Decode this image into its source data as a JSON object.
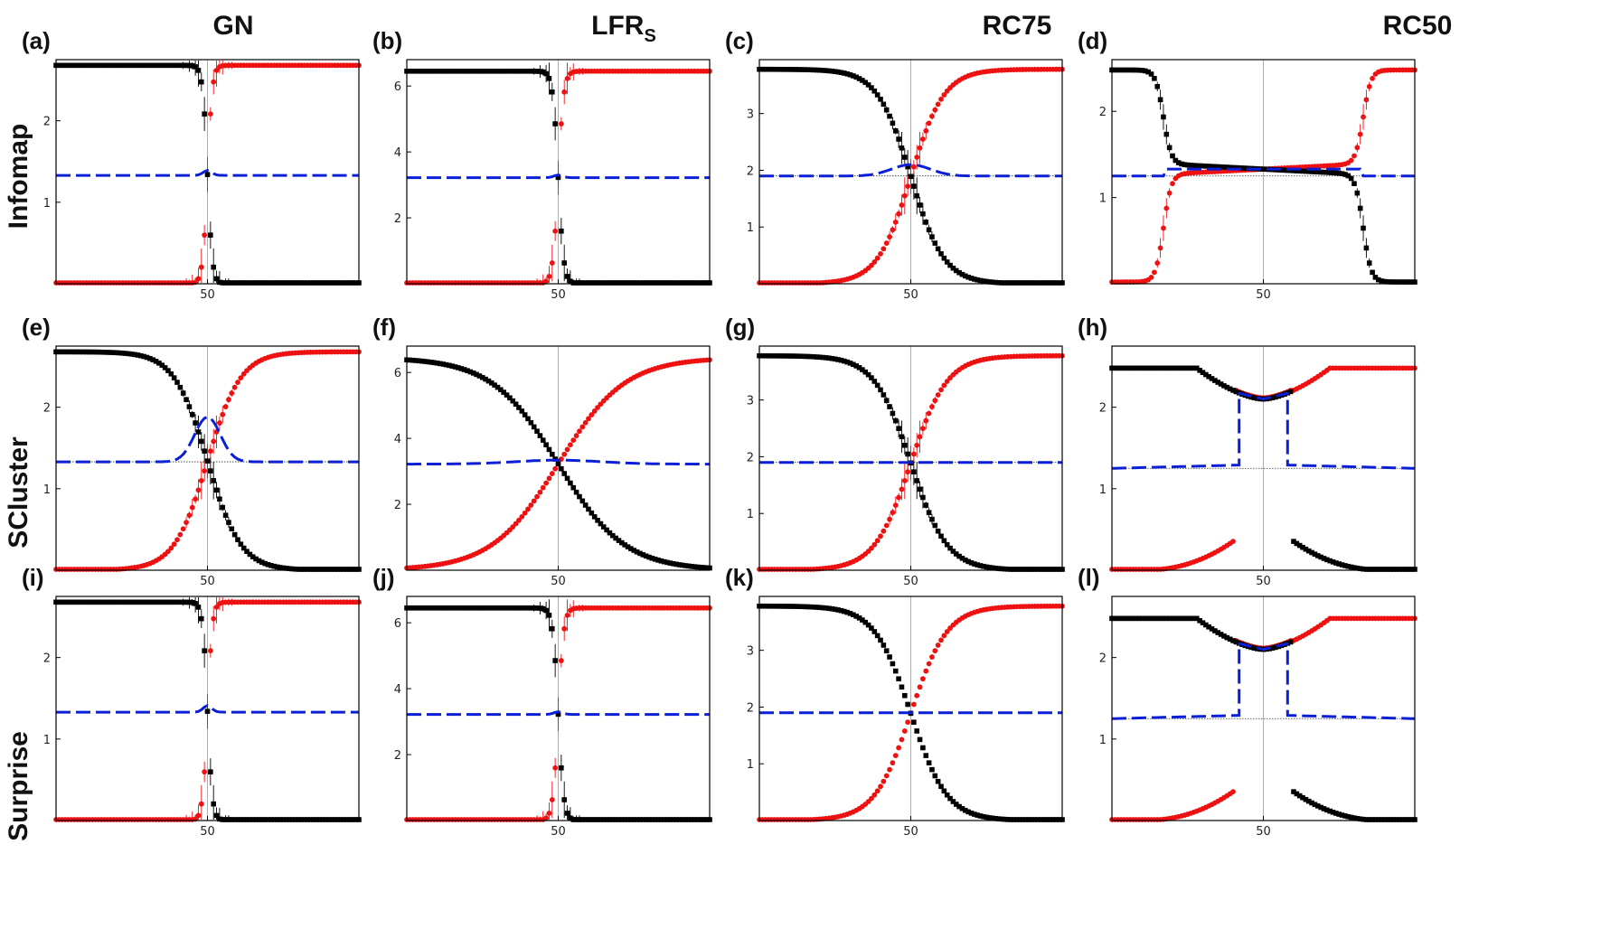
{
  "figure": {
    "columns": [
      "GN",
      "LFR",
      "RC75",
      "RC50"
    ],
    "lfr_subscript": "S",
    "rows": [
      "Infomap",
      "SCluster",
      "Surprise"
    ]
  },
  "colors": {
    "black_series": "#000000",
    "red_series": "#ee1111",
    "blue_series": "#0a1fd6",
    "midline": "#9a9a9a",
    "frame": "#000000"
  },
  "chart_data": [
    {
      "label": "(a)",
      "type": "scatter",
      "column": "GN",
      "row": "Infomap",
      "xlim": [
        0,
        100
      ],
      "ylim": [
        0,
        2.75
      ],
      "yticks": [
        1,
        2
      ],
      "xticks": [
        50
      ],
      "pattern": "step",
      "plateau": 2.68,
      "width": 0.8,
      "baseline": 1.33,
      "bump": 0.06,
      "bump_width": 2,
      "show_midline": true,
      "show_baseline": false,
      "errorbars": true
    },
    {
      "label": "(b)",
      "type": "scatter",
      "column": "LFR",
      "row": "Infomap",
      "xlim": [
        0,
        100
      ],
      "ylim": [
        0,
        6.8
      ],
      "yticks": [
        2,
        4,
        6
      ],
      "xticks": [
        50
      ],
      "pattern": "step",
      "plateau": 6.45,
      "width": 0.9,
      "baseline": 3.22,
      "bump": 0.08,
      "bump_width": 2,
      "show_midline": true,
      "show_baseline": false,
      "errorbars": true
    },
    {
      "label": "(c)",
      "type": "scatter",
      "column": "RC75",
      "row": "Infomap",
      "xlim": [
        0,
        100
      ],
      "ylim": [
        0,
        3.95
      ],
      "yticks": [
        1,
        2,
        3
      ],
      "xticks": [
        50
      ],
      "pattern": "sigmoid",
      "plateau": 3.78,
      "width": 5.5,
      "baseline": 1.9,
      "bump": 0.2,
      "bump_width": 9,
      "show_midline": true,
      "show_baseline": true,
      "errorbars": true
    },
    {
      "label": "(d)",
      "type": "scatter",
      "column": "RC50",
      "row": "Infomap",
      "xlim": [
        0,
        100
      ],
      "ylim": [
        0,
        2.6
      ],
      "yticks": [
        1,
        2
      ],
      "xticks": [
        50
      ],
      "pattern": "twostep",
      "plateau": 2.48,
      "mid_level": 1.33,
      "drop_at": [
        17,
        83
      ],
      "baseline": 1.25,
      "show_midline": true,
      "show_baseline": true,
      "errorbars": true
    },
    {
      "label": "(e)",
      "type": "scatter",
      "column": "GN",
      "row": "SCluster",
      "xlim": [
        0,
        100
      ],
      "ylim": [
        0,
        2.75
      ],
      "yticks": [
        1,
        2
      ],
      "xticks": [
        50
      ],
      "pattern": "sigmoid",
      "plateau": 2.68,
      "width": 5.5,
      "baseline": 1.33,
      "bump": 0.55,
      "bump_width": 6,
      "show_midline": true,
      "show_baseline": true,
      "errorbars": true
    },
    {
      "label": "(f)",
      "type": "scatter",
      "column": "LFR",
      "row": "SCluster",
      "xlim": [
        0,
        100
      ],
      "ylim": [
        0,
        6.8
      ],
      "yticks": [
        2,
        4,
        6
      ],
      "xticks": [
        50
      ],
      "pattern": "sigmoid",
      "plateau": 6.45,
      "width": 11,
      "baseline": 3.22,
      "bump": 0.12,
      "bump_width": 20,
      "show_midline": true,
      "show_baseline": false,
      "errorbars": false
    },
    {
      "label": "(g)",
      "type": "scatter",
      "column": "RC75",
      "row": "SCluster",
      "xlim": [
        0,
        100
      ],
      "ylim": [
        0,
        3.95
      ],
      "yticks": [
        1,
        2,
        3
      ],
      "xticks": [
        50
      ],
      "pattern": "sigmoid",
      "plateau": 3.78,
      "width": 6,
      "baseline": 1.9,
      "bump": 0.0,
      "bump_width": 6,
      "show_midline": true,
      "show_baseline": true,
      "errorbars": true
    },
    {
      "label": "(h)",
      "type": "scatter",
      "column": "RC50",
      "row": "SCluster",
      "xlim": [
        0,
        100
      ],
      "ylim": [
        0,
        2.75
      ],
      "yticks": [
        1,
        2
      ],
      "xticks": [
        50
      ],
      "pattern": "gap",
      "plateau": 2.48,
      "min_level": 2.1,
      "gap": [
        41,
        59
      ],
      "baseline": 1.25,
      "box_level": 2.18,
      "show_midline": true,
      "show_baseline": true,
      "errorbars": false
    },
    {
      "label": "(i)",
      "type": "scatter",
      "column": "GN",
      "row": "Surprise",
      "xlim": [
        0,
        100
      ],
      "ylim": [
        0,
        2.75
      ],
      "yticks": [
        1,
        2
      ],
      "xticks": [
        50
      ],
      "pattern": "step",
      "plateau": 2.68,
      "width": 0.8,
      "baseline": 1.33,
      "bump": 0.08,
      "bump_width": 2,
      "show_midline": true,
      "show_baseline": false,
      "errorbars": true
    },
    {
      "label": "(j)",
      "type": "scatter",
      "column": "LFR",
      "row": "Surprise",
      "xlim": [
        0,
        100
      ],
      "ylim": [
        0,
        6.8
      ],
      "yticks": [
        2,
        4,
        6
      ],
      "xticks": [
        50
      ],
      "pattern": "step",
      "plateau": 6.45,
      "width": 0.9,
      "baseline": 3.22,
      "bump": 0.08,
      "bump_width": 2,
      "show_midline": true,
      "show_baseline": false,
      "errorbars": true
    },
    {
      "label": "(k)",
      "type": "scatter",
      "column": "RC75",
      "row": "Surprise",
      "xlim": [
        0,
        100
      ],
      "ylim": [
        0,
        3.95
      ],
      "yticks": [
        1,
        2,
        3
      ],
      "xticks": [
        50
      ],
      "pattern": "sigmoid",
      "plateau": 3.78,
      "width": 6,
      "baseline": 1.9,
      "bump": 0.0,
      "bump_width": 6,
      "show_midline": true,
      "show_baseline": false,
      "errorbars": false
    },
    {
      "label": "(l)",
      "type": "scatter",
      "column": "RC50",
      "row": "Surprise",
      "xlim": [
        0,
        100
      ],
      "ylim": [
        0,
        2.75
      ],
      "yticks": [
        1,
        2
      ],
      "xticks": [
        50
      ],
      "pattern": "gap",
      "plateau": 2.48,
      "min_level": 2.1,
      "gap": [
        41,
        59
      ],
      "baseline": 1.25,
      "box_level": 2.18,
      "show_midline": true,
      "show_baseline": true,
      "errorbars": false
    }
  ]
}
